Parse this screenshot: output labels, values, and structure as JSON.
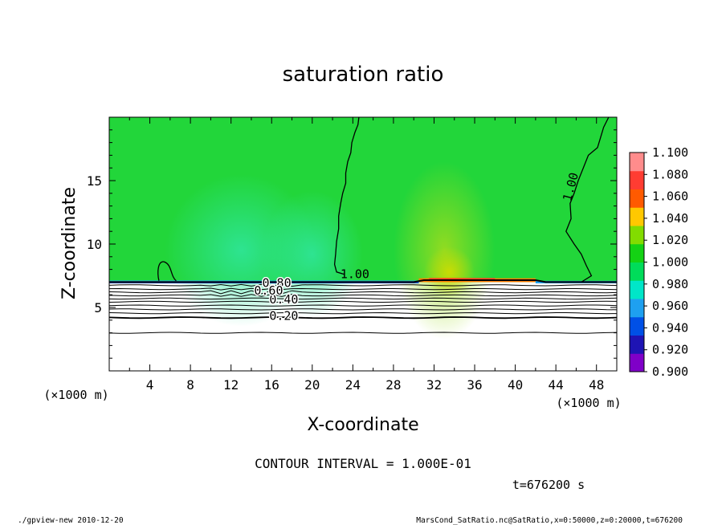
{
  "chart_data": {
    "type": "heatmap",
    "title": "saturation ratio",
    "xlabel": "X-coordinate",
    "ylabel": "Z-coordinate",
    "x_units": "(×1000 m)",
    "z_units": "(×1000 m)",
    "xlim": [
      0,
      50
    ],
    "ylim": [
      0,
      20
    ],
    "x_ticks": [
      4,
      8,
      12,
      16,
      20,
      24,
      28,
      32,
      36,
      40,
      44,
      48
    ],
    "y_ticks": [
      5,
      10,
      15
    ],
    "grid": false,
    "colorbar": {
      "levels": [
        "0.900",
        "0.920",
        "0.940",
        "0.960",
        "0.980",
        "1.000",
        "1.020",
        "1.040",
        "1.060",
        "1.080",
        "1.100"
      ],
      "colors": [
        "#7f00c8",
        "#1e14b4",
        "#0050e6",
        "#1ea0f0",
        "#00e6c8",
        "#00dc5a",
        "#14d214",
        "#82dc00",
        "#ffc800",
        "#ff5a00",
        "#ff3c32",
        "#ff8c8c"
      ]
    },
    "contour_labels": [
      {
        "text": "1.00",
        "x": 24.2,
        "z": 7.6
      },
      {
        "text": "1.00",
        "x": 45.5,
        "z": 14.5
      },
      {
        "text": "0.40",
        "x": 17.2,
        "z": 5.6
      },
      {
        "text": "0.20",
        "x": 17.2,
        "z": 4.3
      },
      {
        "text": "0.80",
        "x": 16.5,
        "z": 6.9
      },
      {
        "text": "0.60",
        "x": 15.7,
        "z": 6.3
      }
    ],
    "contour_interval": "CONTOUR INTERVAL = 1.000E-01",
    "time": "t=676200 s"
  },
  "footer": {
    "left": "./gpview-new   2010-12-20",
    "right": "MarsCond_SatRatio.nc@SatRatio,x=0:50000,z=0:20000,t=676200"
  },
  "colors": {
    "axis": "#000000",
    "background": "#ffffff"
  }
}
